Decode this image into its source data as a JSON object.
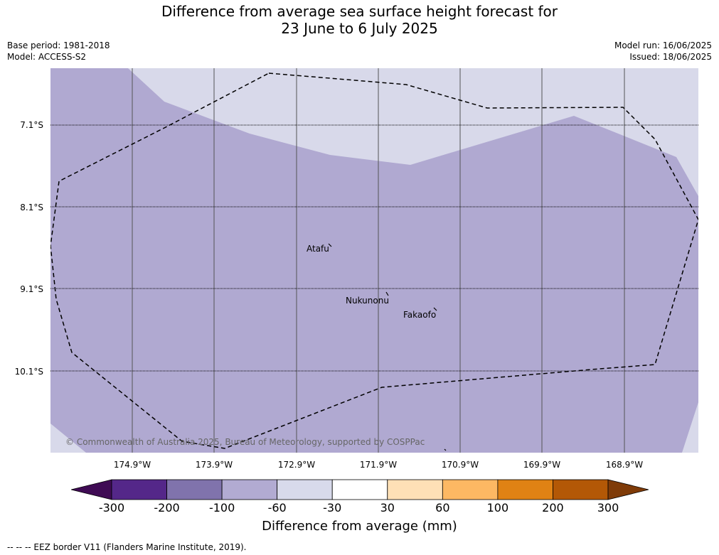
{
  "title_line1": "Difference from average sea surface height forecast for",
  "title_line2": "23 June to 6 July 2025",
  "base_period": "Base period: 1981-2018",
  "model": "Model: ACCESS-S2",
  "model_run": "Model run: 16/06/2025",
  "issued": "Issued: 18/06/2025",
  "latitudes": [
    "7.1°S",
    "8.1°S",
    "9.1°S",
    "10.1°S"
  ],
  "longitudes": [
    "174.9°W",
    "173.9°W",
    "172.9°W",
    "171.9°W",
    "170.9°W",
    "169.9°W",
    "168.9°W"
  ],
  "places": [
    "Atafu",
    "Nukunonu",
    "Fakaofo"
  ],
  "copyright": "© Commonwealth of Australia 2025, Bureau of Meteorology, supported by COSPPac",
  "colorbar": {
    "label": "Difference from average (mm)",
    "ticks": [
      "-300",
      "-200",
      "-100",
      "-60",
      "-30",
      "30",
      "60",
      "100",
      "200",
      "300"
    ],
    "colors": [
      "#3f0b54",
      "#542789",
      "#8073ac",
      "#b2abd2",
      "#d8daeb",
      "#ffffff",
      "#fee0b6",
      "#fdb863",
      "#e08214",
      "#b35806",
      "#7f3b08"
    ]
  },
  "map_colors": {
    "main": "#b0a9d1",
    "light": "#d8d9ea"
  },
  "footnote": "--  --  -- EEZ border V11 (Flanders Marine Institute, 2019)."
}
